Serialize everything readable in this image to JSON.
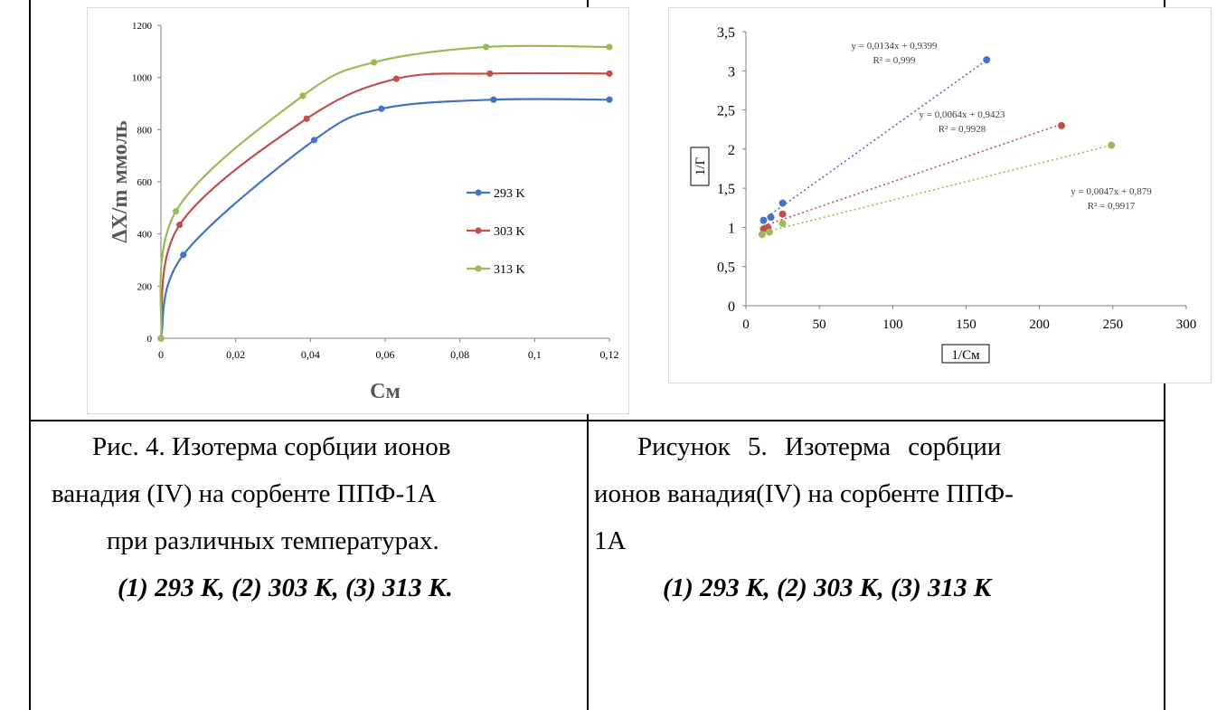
{
  "chart_data": [
    {
      "type": "line",
      "xlabel": "См",
      "ylabel": "ΔX/m ммоль",
      "xlim": [
        0,
        0.12
      ],
      "ylim": [
        0,
        1200
      ],
      "xticks": [
        "0",
        "0,02",
        "0,04",
        "0,06",
        "0,08",
        "0,1",
        "0,12"
      ],
      "yticks": [
        "0",
        "200",
        "400",
        "600",
        "800",
        "1000",
        "1200"
      ],
      "legend_position": "right",
      "grid": false,
      "series": [
        {
          "name": "293 K",
          "color": "#4472C4",
          "x": [
            0,
            0.006,
            0.041,
            0.059,
            0.089,
            0.12
          ],
          "y": [
            0,
            320,
            760,
            880,
            915,
            915
          ]
        },
        {
          "name": "303 K",
          "color": "#C0504D",
          "x": [
            0,
            0.005,
            0.039,
            0.063,
            0.088,
            0.12
          ],
          "y": [
            0,
            435,
            842,
            995,
            1015,
            1015
          ]
        },
        {
          "name": "313 K",
          "color": "#9BBB59",
          "x": [
            0,
            0.004,
            0.038,
            0.057,
            0.087,
            0.12
          ],
          "y": [
            0,
            487,
            930,
            1058,
            1117,
            1117
          ]
        }
      ]
    },
    {
      "type": "scatter",
      "xlabel": "1/См",
      "ylabel": "1/Г",
      "xlim": [
        0,
        300
      ],
      "ylim": [
        0,
        3.5
      ],
      "xticks": [
        "0",
        "50",
        "100",
        "150",
        "200",
        "250",
        "300"
      ],
      "yticks": [
        "0",
        "0,5",
        "1",
        "1,5",
        "2",
        "2,5",
        "3",
        "3,5"
      ],
      "grid": false,
      "series": [
        {
          "color": "#4472C4",
          "x": [
            12,
            17,
            25,
            164
          ],
          "y": [
            1.09,
            1.13,
            1.31,
            3.14
          ],
          "trend": [
            0.0134,
            0.9399
          ],
          "equation": "y = 0,0134x + 0,9399",
          "r2": "R² = 0,999"
        },
        {
          "color": "#C0504D",
          "x": [
            12,
            15,
            25,
            215
          ],
          "y": [
            0.98,
            1.0,
            1.17,
            2.3
          ],
          "trend": [
            0.0064,
            0.9423
          ],
          "equation": "y = 0,0064x + 0,9423",
          "r2": "R² = 0,9928"
        },
        {
          "color": "#9BBB59",
          "x": [
            11,
            16,
            25,
            249
          ],
          "y": [
            0.91,
            0.94,
            1.05,
            2.05
          ],
          "trend": [
            0.0047,
            0.879
          ],
          "equation": "y = 0,0047x + 0,879",
          "r2": "R² = 0,9917"
        }
      ]
    }
  ],
  "captions": {
    "left": {
      "line1": "Рис. 4. Изотерма сорбции ионов",
      "line2": "ванадия (IV) на сорбенте ППФ-1А",
      "line3": "при различных температурах.",
      "line4": "(1) 293 К, (2) 303 К, (3) 313 К."
    },
    "right": {
      "line1": "Рисунок 5. Изотерма сорбции",
      "line2": "ионов ванадия(IV) на сорбенте ППФ-",
      "line3": "1А",
      "line4": "(1) 293 К, (2) 303 К, (3) 313 К"
    }
  }
}
